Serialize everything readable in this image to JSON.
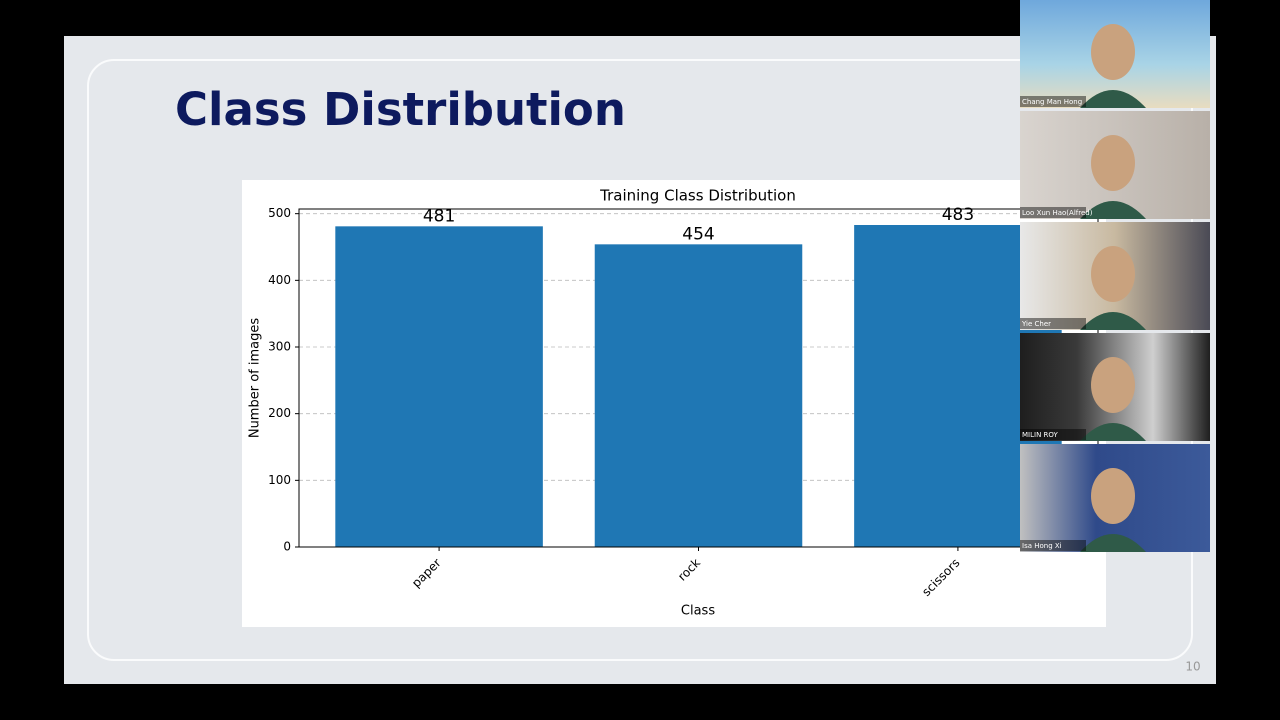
{
  "slide": {
    "title": "Class Distribution",
    "page_number": 10
  },
  "chart_data": {
    "type": "bar",
    "title": "Training Class Distribution",
    "x_label": "Class",
    "y_label": "Number of images",
    "categories": [
      "paper",
      "rock",
      "scissors"
    ],
    "values": [
      481,
      454,
      483
    ],
    "color": "#1f77b4",
    "ylim": [
      0,
      507
    ],
    "yticks": [
      0,
      100,
      200,
      300,
      400,
      500
    ],
    "grid": true
  },
  "participants": [
    "Chang Man Hong",
    "Loo Xun Hao(Alfred)",
    "Yie Cher",
    "MILIN ROY",
    "Isa Hong Xi"
  ]
}
